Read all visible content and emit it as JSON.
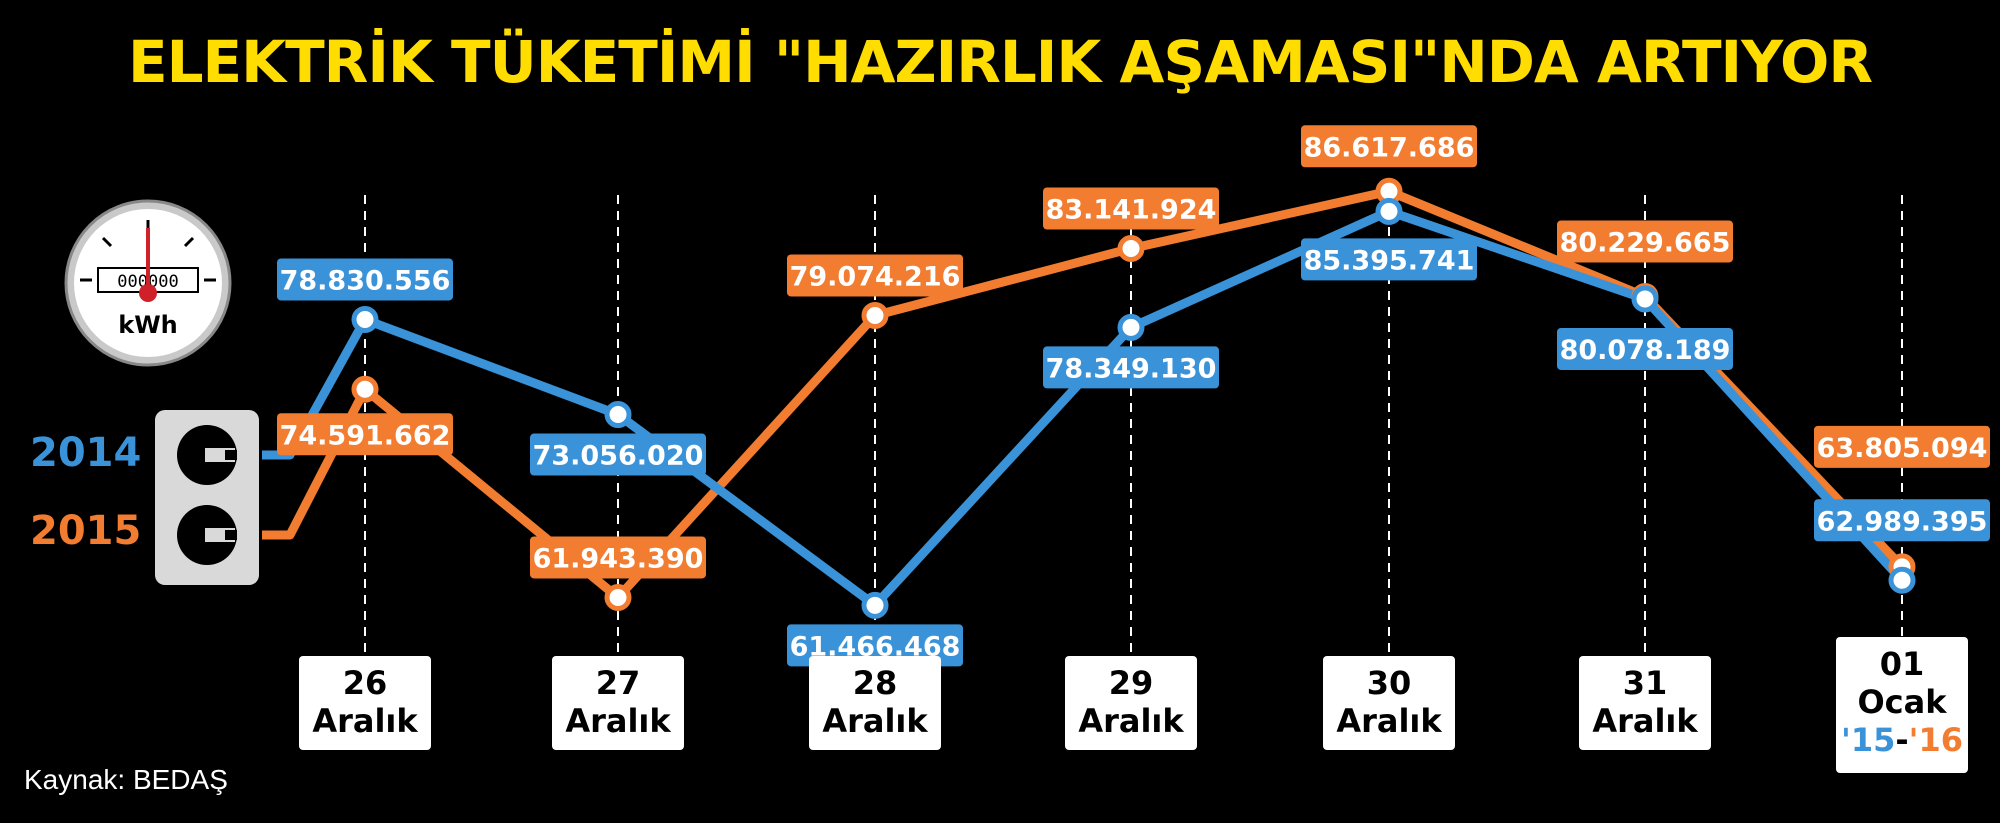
{
  "title": "ELEKTRİK TÜKETİMİ \"HAZIRLIK AŞAMASI\"NDA ARTIYOR",
  "source": "Kaynak: BEDAŞ",
  "meter": {
    "unit": "kWh",
    "digits": "000000"
  },
  "colors": {
    "s2014": "#3a93d8",
    "s2015": "#f27c2f",
    "title": "#ffdd00",
    "background": "#000000"
  },
  "chart_data": {
    "type": "line",
    "title": "ELEKTRİK TÜKETİMİ \"HAZIRLIK AŞAMASI\"NDA ARTIYOR",
    "categories": [
      {
        "day": "26",
        "month": "Aralık"
      },
      {
        "day": "27",
        "month": "Aralık"
      },
      {
        "day": "28",
        "month": "Aralık"
      },
      {
        "day": "29",
        "month": "Aralık"
      },
      {
        "day": "30",
        "month": "Aralık"
      },
      {
        "day": "31",
        "month": "Aralık"
      },
      {
        "day": "01",
        "month": "Ocak",
        "years": [
          "'15",
          "-",
          "'16"
        ]
      }
    ],
    "series": [
      {
        "name": "2014",
        "color": "#3a93d8",
        "values": [
          78830556,
          73056020,
          61466468,
          78349130,
          85395741,
          80078189,
          62989395
        ],
        "labels": [
          "78.830.556",
          "73.056.020",
          "61.466.468",
          "78.349.130",
          "85.395.741",
          "80.078.189",
          "62.989.395"
        ]
      },
      {
        "name": "2015",
        "color": "#f27c2f",
        "values": [
          74591662,
          61943390,
          79074216,
          83141924,
          86617686,
          80229665,
          63805094
        ],
        "labels": [
          "74.591.662",
          "61.943.390",
          "79.074.216",
          "83.141.924",
          "86.617.686",
          "80.229.665",
          "63.805.094"
        ]
      }
    ],
    "ylim": [
      61000000,
      87000000
    ],
    "legend_placement": "left"
  }
}
